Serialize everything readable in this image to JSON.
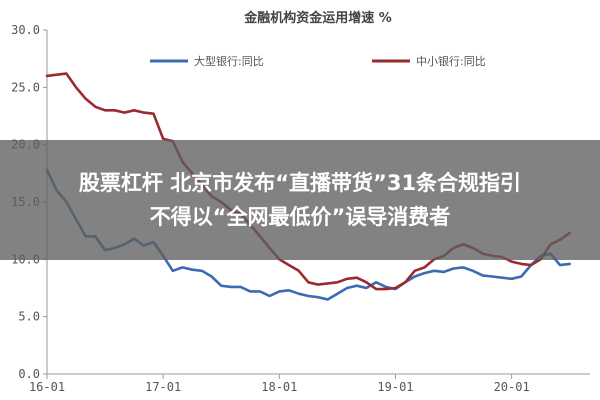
{
  "headline": {
    "line1": "股票杠杆 北京市发布“直播带货”31条合规指引",
    "line2": "不得以“全网最低价”误导消费者"
  },
  "colors": {
    "large_banks": "#3b6cb3",
    "small_medium_banks": "#9b2a2e",
    "axis": "#999999"
  },
  "chart_data": {
    "type": "line",
    "title": "金融机构资金运用增速 %",
    "xlabel": "",
    "ylabel": "",
    "ylim": [
      0,
      30
    ],
    "xlim": [
      0,
      54
    ],
    "yticks": [
      {
        "v": 0,
        "label": "0.0"
      },
      {
        "v": 5,
        "label": "5.0"
      },
      {
        "v": 10,
        "label": "10.0"
      },
      {
        "v": 15,
        "label": "15.0"
      },
      {
        "v": 20,
        "label": "20.0"
      },
      {
        "v": 25,
        "label": "25.0"
      },
      {
        "v": 30,
        "label": "30.0"
      }
    ],
    "xticks": [
      {
        "i": 0,
        "label": "16-01"
      },
      {
        "i": 12,
        "label": "17-01"
      },
      {
        "i": 24,
        "label": "18-01"
      },
      {
        "i": 36,
        "label": "19-01"
      },
      {
        "i": 48,
        "label": "20-01"
      }
    ],
    "grid": false,
    "legend_position": "top",
    "series": [
      {
        "name": "大型银行:同比",
        "color": "#3b6cb3",
        "values": [
          17.8,
          16.0,
          15.0,
          13.5,
          12.0,
          12.0,
          10.8,
          11.0,
          11.3,
          11.8,
          11.2,
          11.5,
          10.3,
          9.0,
          9.3,
          9.1,
          9.0,
          8.5,
          7.7,
          7.6,
          7.6,
          7.2,
          7.2,
          6.8,
          7.2,
          7.3,
          7.0,
          6.8,
          6.7,
          6.5,
          7.0,
          7.5,
          7.7,
          7.5,
          8.0,
          7.6,
          7.4,
          8.0,
          8.5,
          8.8,
          9.0,
          8.9,
          9.2,
          9.3,
          9.0,
          8.6,
          8.5,
          8.4,
          8.3,
          8.5,
          9.5,
          10.3,
          10.5,
          9.5,
          9.6
        ]
      },
      {
        "name": "中小银行:同比",
        "color": "#9b2a2e",
        "values": [
          26.0,
          26.1,
          26.2,
          25.0,
          24.0,
          23.3,
          23.0,
          23.0,
          22.8,
          23.0,
          22.8,
          22.7,
          20.5,
          20.3,
          18.5,
          17.5,
          16.5,
          15.5,
          15.0,
          14.3,
          14.0,
          13.0,
          12.0,
          11.0,
          10.0,
          9.5,
          9.0,
          8.0,
          7.8,
          7.9,
          8.0,
          8.3,
          8.4,
          8.0,
          7.4,
          7.4,
          7.5,
          8.0,
          9.0,
          9.3,
          10.0,
          10.3,
          11.0,
          11.3,
          11.0,
          10.5,
          10.3,
          10.2,
          9.8,
          9.6,
          9.5,
          10.0,
          11.3,
          11.7,
          12.3
        ]
      }
    ]
  }
}
